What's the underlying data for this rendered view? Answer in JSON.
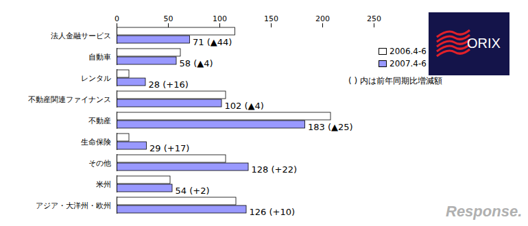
{
  "chart_data": {
    "type": "bar",
    "orientation": "horizontal",
    "categories": [
      "法人金融サービス",
      "自動車",
      "レンタル",
      "不動産関連ファイナンス",
      "不動産",
      "生命保険",
      "その他",
      "米州",
      "アジア・大洋州・欧州"
    ],
    "series": [
      {
        "name": "2006.4-6",
        "color": "#ffffff",
        "values": [
          115,
          62,
          12,
          106,
          208,
          12,
          106,
          52,
          116
        ]
      },
      {
        "name": "2007.4-6",
        "color": "#9999ff",
        "values": [
          71,
          58,
          28,
          102,
          183,
          29,
          128,
          54,
          126
        ],
        "value_labels": [
          "71 (▲44)",
          "58 (▲4)",
          "28 (+16)",
          "102 (▲4)",
          "183 (▲25)",
          "29 (+17)",
          "128 (+22)",
          "54 (+2)",
          "126 (+10)"
        ]
      }
    ],
    "xlim": [
      0,
      250
    ],
    "xticks": [
      0,
      50,
      100,
      150,
      200,
      250
    ],
    "grid": false,
    "legend": "right",
    "data_labels": true,
    "annotations": [
      "( ) 内は前年同期比増減額",
      "ORIX",
      "Response."
    ]
  }
}
